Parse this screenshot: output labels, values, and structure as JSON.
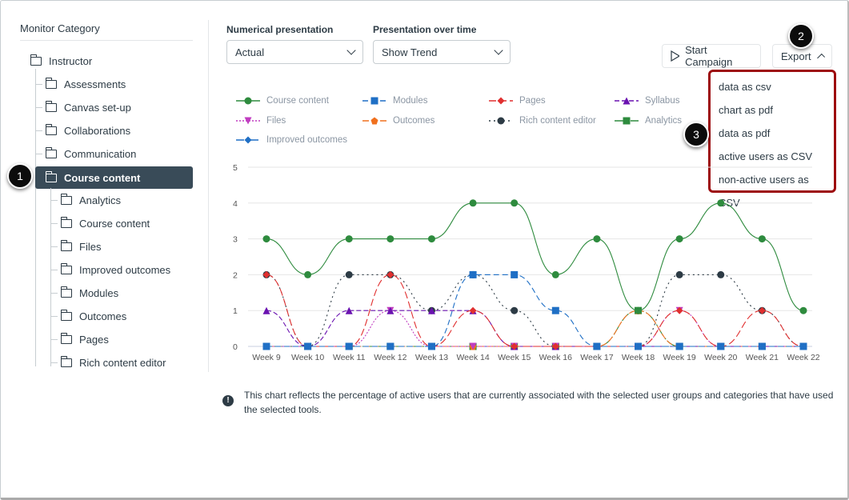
{
  "sidebar": {
    "title": "Monitor Category",
    "root": "Instructor",
    "items": [
      "Assessments",
      "Canvas set-up",
      "Collaborations",
      "Communication",
      "Course content"
    ],
    "selected": "Course content",
    "children": [
      "Analytics",
      "Course content",
      "Files",
      "Improved outcomes",
      "Modules",
      "Outcomes",
      "Pages",
      "Rich content editor"
    ]
  },
  "controls": {
    "numerical_label": "Numerical presentation",
    "numerical_value": "Actual",
    "time_label": "Presentation over time",
    "time_value": "Show Trend",
    "start_campaign": "Start Campaign",
    "export": "Export"
  },
  "export_menu": [
    "data as csv",
    "chart as pdf",
    "data as pdf",
    "active users as CSV",
    "non-active users as CSV"
  ],
  "callouts": [
    "1",
    "2",
    "3"
  ],
  "note": "This chart reflects the percentage of active users that are currently associated with the selected user groups and categories that have used the selected tools.",
  "chart_data": {
    "type": "line",
    "categories": [
      "Week 9",
      "Week 10",
      "Week 11",
      "Week 12",
      "Week 13",
      "Week 14",
      "Week 15",
      "Week 16",
      "Week 17",
      "Week 18",
      "Week 19",
      "Week 20",
      "Week 21",
      "Week 22"
    ],
    "ylim": [
      0,
      5
    ],
    "yticks": [
      "0",
      "1",
      "2",
      "3",
      "4",
      "5"
    ],
    "grid": true,
    "legend": "top",
    "series": [
      {
        "name": "Course content",
        "color": "#2e8b3e",
        "marker": "circle",
        "dash": "",
        "values": [
          3,
          2,
          3,
          3,
          3,
          4,
          4,
          2,
          3,
          1,
          3,
          4,
          3,
          1
        ]
      },
      {
        "name": "Modules",
        "color": "#1f6fc5",
        "marker": "square",
        "dash": "7,4",
        "values": [
          0,
          0,
          0,
          0,
          0,
          2,
          2,
          1,
          0,
          0,
          0,
          0,
          0,
          0
        ]
      },
      {
        "name": "Pages",
        "color": "#e02f2f",
        "marker": "diamond",
        "dash": "9,4",
        "values": [
          2,
          0,
          0,
          2,
          0,
          1,
          0,
          0,
          0,
          0,
          1,
          0,
          1,
          0
        ]
      },
      {
        "name": "Syllabus",
        "color": "#6a12b0",
        "marker": "triangle",
        "dash": "6,3",
        "values": [
          1,
          0,
          1,
          1,
          1,
          1,
          0,
          0,
          0,
          0,
          0,
          0,
          0,
          0
        ]
      },
      {
        "name": "Files",
        "color": "#c03cc0",
        "marker": "triangle-down",
        "dash": "2,2",
        "values": [
          0,
          0,
          0,
          1,
          0,
          0,
          0,
          0,
          0,
          0,
          1,
          0,
          0,
          0
        ]
      },
      {
        "name": "Outcomes",
        "color": "#f0701e",
        "marker": "pentagon",
        "dash": "8,3",
        "values": [
          0,
          0,
          0,
          0,
          0,
          0,
          0,
          0,
          0,
          1,
          0,
          0,
          0,
          0
        ]
      },
      {
        "name": "Rich content editor",
        "color": "#2d3b45",
        "marker": "circle",
        "dash": "2,4",
        "values": [
          2,
          0,
          2,
          2,
          1,
          2,
          1,
          0,
          0,
          0,
          2,
          2,
          1,
          0
        ]
      },
      {
        "name": "Analytics",
        "color": "#2e8b3e",
        "marker": "square",
        "dash": "12,3,2,3",
        "values": [
          0,
          0,
          0,
          0,
          0,
          0,
          0,
          0,
          0,
          1,
          0,
          0,
          0,
          0
        ]
      },
      {
        "name": "Improved outcomes",
        "color": "#1f6fc5",
        "marker": "diamond",
        "dash": "10,3,2,3",
        "values": [
          0,
          0,
          0,
          0,
          0,
          0,
          0,
          0,
          0,
          0,
          0,
          0,
          0,
          0
        ]
      }
    ]
  }
}
